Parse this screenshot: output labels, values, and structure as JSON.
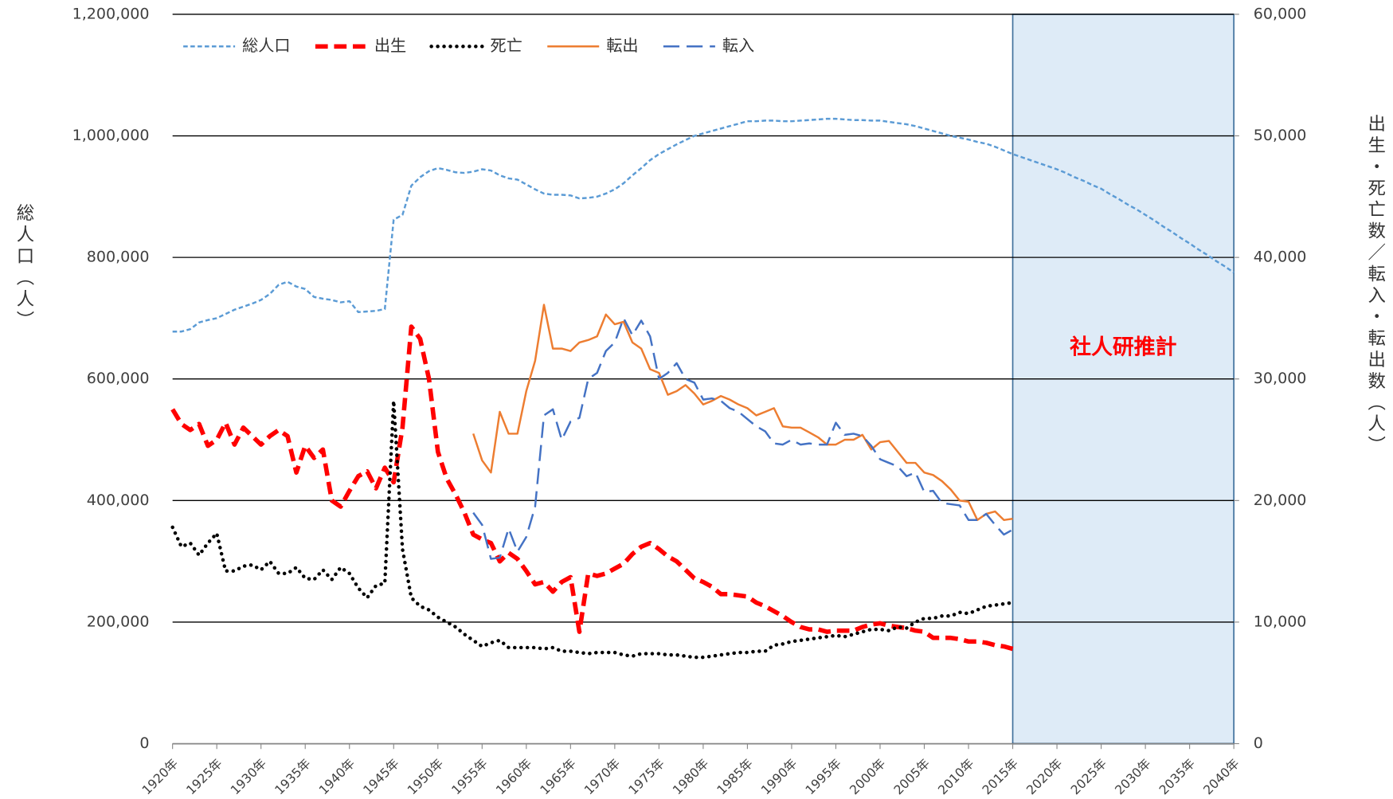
{
  "chart_data": {
    "type": "line",
    "y_label": "総人口（人）",
    "y2_label": "出生・死亡数／転入・転出数（人）",
    "categories": [
      "1920年",
      null,
      null,
      null,
      null,
      "1925年",
      null,
      null,
      null,
      null,
      "1930年",
      null,
      null,
      null,
      null,
      "1935年",
      null,
      null,
      null,
      null,
      "1940年",
      null,
      null,
      null,
      null,
      "1945年",
      null,
      null,
      null,
      null,
      "1950年",
      null,
      null,
      null,
      null,
      "1955年",
      null,
      null,
      null,
      null,
      "1960年",
      null,
      null,
      null,
      null,
      "1965年",
      null,
      null,
      null,
      null,
      "1970年",
      null,
      null,
      null,
      null,
      "1975年",
      null,
      null,
      null,
      null,
      "1980年",
      null,
      null,
      null,
      null,
      "1985年",
      null,
      null,
      null,
      null,
      "1990年",
      null,
      null,
      null,
      null,
      "1995年",
      null,
      null,
      null,
      null,
      "2000年",
      null,
      null,
      null,
      null,
      "2005年",
      null,
      null,
      null,
      null,
      "2010年",
      null,
      null,
      null,
      null,
      "2015年",
      null,
      null,
      null,
      null,
      "2020年",
      null,
      null,
      null,
      null,
      "2025年",
      null,
      null,
      null,
      null,
      "2030年",
      null,
      null,
      null,
      null,
      "2035年",
      null,
      null,
      null,
      null,
      "2040年"
    ],
    "ylim": [
      0,
      1200000
    ],
    "yticks": [
      0,
      {
        "value": 200000,
        "label": "200,000"
      },
      {
        "value": 400000,
        "label": "400,000"
      },
      {
        "value": 600000,
        "label": "600,000"
      },
      {
        "value": 800000,
        "label": "800,000"
      },
      {
        "value": 1000000,
        "label": "1,000,000"
      },
      {
        "value": 1200000,
        "label": "1,200,000"
      }
    ],
    "y2lim": [
      0,
      60000
    ],
    "y2ticks": [
      0,
      {
        "value": 10000,
        "label": "10,000"
      },
      {
        "value": 20000,
        "label": "20,000"
      },
      {
        "value": 30000,
        "label": "30,000"
      },
      {
        "value": 40000,
        "label": "40,000"
      },
      {
        "value": 50000,
        "label": "50,000"
      },
      {
        "value": 60000,
        "label": "60,000"
      }
    ],
    "grid": true,
    "legend": "top-left",
    "shaded_region": {
      "from": "2015年",
      "to": "2040年",
      "label": "社人研推計",
      "color": "#deebf7",
      "label_color": "#ff0000"
    },
    "series": [
      {
        "name": "総人口",
        "color": "#5b9bd5",
        "style": "short-dash",
        "values": [
          678000,
          678000,
          682000,
          693000,
          697000,
          700000,
          707000,
          714000,
          719000,
          724000,
          730000,
          740000,
          755000,
          760000,
          752000,
          748000,
          735000,
          732000,
          730000,
          726000,
          728000,
          710000,
          711000,
          712000,
          715000,
          862000,
          870000,
          918000,
          932000,
          942000,
          947000,
          944000,
          940000,
          939000,
          941000,
          945000,
          943000,
          935000,
          930000,
          928000,
          920000,
          912000,
          905000,
          903000,
          903000,
          902000,
          897000,
          898000,
          900000,
          905000,
          912000,
          922000,
          935000,
          947000,
          960000,
          970000,
          978000,
          986000,
          993000,
          1000000,
          1004000,
          1008000,
          1012000,
          1016000,
          1020000,
          1024000,
          1024000,
          1025000,
          1025000,
          1024000,
          1024000,
          1025000,
          1026000,
          1027000,
          1028000,
          1028000,
          1027000,
          1026000,
          1026000,
          1025000,
          1025000,
          1023000,
          1021000,
          1019000,
          1016000,
          1012000,
          1008000,
          1004000,
          1000000,
          997000,
          994000,
          990000,
          987000,
          982000,
          976000,
          970000,
          965000,
          960000,
          955000,
          950000,
          945000,
          939000,
          932000,
          926000,
          919000,
          913000,
          904000,
          896000,
          887000,
          879000,
          870000,
          861000,
          851000,
          842000,
          832000,
          823000,
          813000,
          804000,
          794000,
          785000,
          775000
        ]
      },
      {
        "name": "出生",
        "color": "#ff0000",
        "style": "bold-dash",
        "axis": "y2",
        "values": [
          27500,
          26300,
          25800,
          26300,
          24500,
          25000,
          26400,
          24600,
          26000,
          25300,
          24600,
          25300,
          25800,
          25300,
          22300,
          24500,
          23500,
          24200,
          20000,
          19500,
          20800,
          22000,
          22400,
          21000,
          22700,
          21500,
          26000,
          34300,
          33300,
          30000,
          24000,
          21800,
          20500,
          19000,
          17200,
          16800,
          16500,
          15000,
          15700,
          15200,
          14200,
          13100,
          13300,
          12500,
          13300,
          13700,
          9200,
          14000,
          13800,
          14000,
          14400,
          14800,
          15600,
          16200,
          16500,
          16000,
          15400,
          15000,
          14300,
          13600,
          13300,
          12900,
          12300,
          12300,
          12200,
          12100,
          11600,
          11300,
          10900,
          10500,
          10000,
          9600,
          9400,
          9400,
          9200,
          9300,
          9300,
          9300,
          9600,
          9800,
          9900,
          9700,
          9600,
          9500,
          9300,
          9200,
          8700,
          8700,
          8700,
          8600,
          8400,
          8400,
          8300,
          8100,
          8000,
          7800,
          null,
          null,
          null,
          null,
          null,
          null,
          null,
          null,
          null,
          null,
          null,
          null,
          null,
          null,
          null,
          null,
          null,
          null,
          null,
          null,
          null,
          null,
          null,
          null,
          null
        ]
      },
      {
        "name": "死亡",
        "color": "#000000",
        "style": "dotted",
        "axis": "y2",
        "values": [
          17800,
          16200,
          16500,
          15500,
          16500,
          17300,
          14200,
          14200,
          14600,
          14700,
          14300,
          15000,
          14000,
          14000,
          14500,
          13600,
          13500,
          14300,
          13500,
          14500,
          14000,
          12800,
          12000,
          13000,
          13200,
          28200,
          16000,
          12000,
          11300,
          11000,
          10400,
          10000,
          9600,
          9000,
          8500,
          8000,
          8300,
          8500,
          7900,
          7900,
          7900,
          7900,
          7800,
          7900,
          7600,
          7600,
          7500,
          7400,
          7500,
          7500,
          7500,
          7300,
          7200,
          7400,
          7400,
          7400,
          7300,
          7300,
          7200,
          7100,
          7100,
          7200,
          7300,
          7400,
          7500,
          7500,
          7600,
          7600,
          8100,
          8200,
          8400,
          8500,
          8600,
          8700,
          8800,
          8900,
          8800,
          9000,
          9200,
          9400,
          9400,
          9300,
          9600,
          9500,
          10000,
          10300,
          10300,
          10500,
          10500,
          10800,
          10700,
          11000,
          11300,
          11400,
          11500,
          11600,
          null,
          null,
          null,
          null,
          null,
          null,
          null,
          null,
          null,
          null,
          null,
          null,
          null,
          null,
          null,
          null,
          null,
          null,
          null,
          null,
          null,
          null,
          null,
          null,
          null
        ]
      },
      {
        "name": "転出",
        "color": "#ed7d31",
        "style": "solid",
        "axis": "y2",
        "values": [
          null,
          null,
          null,
          null,
          null,
          null,
          null,
          null,
          null,
          null,
          null,
          null,
          null,
          null,
          null,
          null,
          null,
          null,
          null,
          null,
          null,
          null,
          null,
          null,
          null,
          null,
          null,
          null,
          null,
          null,
          null,
          null,
          null,
          null,
          25500,
          23300,
          22300,
          27300,
          25500,
          25500,
          29000,
          31500,
          36100,
          32500,
          32500,
          32300,
          33000,
          33200,
          33500,
          35300,
          34500,
          34700,
          33000,
          32500,
          30800,
          30500,
          28700,
          29000,
          29500,
          28800,
          27900,
          28200,
          28600,
          28300,
          27900,
          27600,
          27000,
          27300,
          27600,
          26100,
          26000,
          26000,
          25600,
          25200,
          24600,
          24600,
          25000,
          25000,
          25400,
          24200,
          24800,
          24900,
          24000,
          23100,
          23100,
          22300,
          22100,
          21600,
          20900,
          20000,
          19900,
          18400,
          18900,
          19100,
          18400,
          18500,
          null,
          null,
          null,
          null,
          null,
          null,
          null,
          null,
          null,
          null,
          null,
          null,
          null,
          null,
          null,
          null,
          null,
          null,
          null,
          null,
          null,
          null,
          null,
          null,
          null
        ]
      },
      {
        "name": "転入",
        "color": "#4472c4",
        "style": "long-dash",
        "axis": "y2",
        "values": [
          null,
          null,
          null,
          null,
          null,
          null,
          null,
          null,
          null,
          null,
          null,
          null,
          null,
          null,
          null,
          null,
          null,
          null,
          null,
          null,
          null,
          null,
          null,
          null,
          null,
          null,
          null,
          null,
          null,
          null,
          null,
          null,
          null,
          null,
          19000,
          18000,
          15200,
          15300,
          17700,
          15800,
          17000,
          19500,
          27000,
          27500,
          25000,
          26500,
          26800,
          30000,
          30500,
          32300,
          33000,
          35000,
          33600,
          34800,
          33500,
          30000,
          30500,
          31300,
          30000,
          29700,
          28300,
          28400,
          28200,
          27600,
          27300,
          26700,
          26100,
          25700,
          24700,
          24600,
          25000,
          24600,
          24700,
          24600,
          24600,
          26400,
          25400,
          25500,
          25300,
          24500,
          23400,
          23100,
          22800,
          22000,
          22300,
          20700,
          20800,
          19800,
          19700,
          19600,
          18400,
          18400,
          18900,
          18000,
          17200,
          17600,
          null,
          null,
          null,
          null,
          null,
          null,
          null,
          null,
          null,
          null,
          null,
          null,
          null,
          null,
          null,
          null,
          null,
          null,
          null,
          null,
          null,
          null,
          null,
          null,
          null
        ]
      }
    ]
  }
}
